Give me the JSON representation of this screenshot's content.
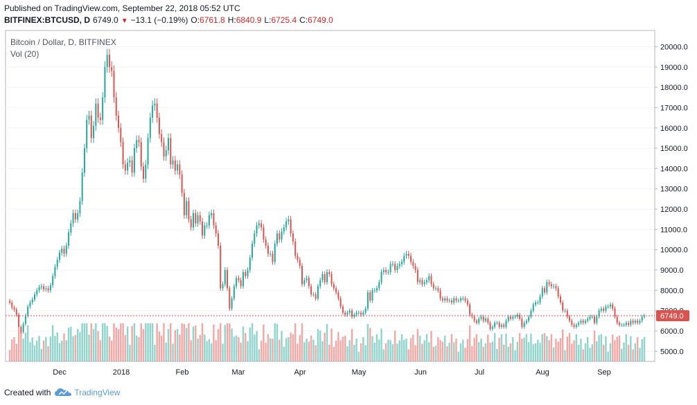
{
  "header": {
    "published": "Published on TradingView.com, September 22, 2018 05:52 UTC",
    "symbol": "BITFINEX:BTCUSD, D",
    "last": "6749.0",
    "change": "−13.1 (−0.19%)",
    "o_label": "O:",
    "o_value": "6761.8",
    "h_label": "H:",
    "h_value": "6840.9",
    "l_label": "L:",
    "l_value": "6725.4",
    "c_label": "C:",
    "c_value": "6749.0"
  },
  "chart_data": {
    "type": "candlestick",
    "title": "Bitcoin / Dollar, D, BITFINEX",
    "volume_label": "Vol (20)",
    "price_axis_ticks": [
      20000,
      19000,
      18000,
      17000,
      16000,
      15000,
      14000,
      13000,
      12000,
      11000,
      10000,
      9000,
      8000,
      7000,
      6000,
      5000
    ],
    "price_axis_labels": [
      "20000.0",
      "19000.0",
      "18000.0",
      "17000.0",
      "16000.0",
      "15000.0",
      "14000.0",
      "13000.0",
      "12000.0",
      "11000.0",
      "10000.0",
      "9000.0",
      "8000.0",
      "7000.0",
      "6000.0",
      "5000.0"
    ],
    "time_axis_labels": [
      "Dec",
      "2018",
      "Feb",
      "Mar",
      "Apr",
      "May",
      "Jun",
      "Jul",
      "Aug",
      "Sep"
    ],
    "last_price_label": "6749.0",
    "last_price": 6749.0,
    "ylim": [
      4500,
      20800
    ],
    "colors": {
      "up": "#26a69a",
      "down": "#d9534f",
      "up_vol": "#8fd3cb",
      "down_vol": "#f2a7a4",
      "last_line": "#d9534f"
    },
    "closes": [
      7400,
      7150,
      7050,
      6800,
      6200,
      5950,
      6350,
      6750,
      7200,
      7400,
      7550,
      7800,
      8000,
      8150,
      8200,
      8050,
      8100,
      8000,
      8250,
      8700,
      9150,
      9500,
      9850,
      10050,
      9800,
      10200,
      10850,
      11300,
      11800,
      11500,
      11800,
      12400,
      13800,
      15000,
      16400,
      16600,
      15500,
      16100,
      17200,
      16500,
      16400,
      17500,
      19000,
      19600,
      19000,
      18800,
      17500,
      16600,
      16000,
      15300,
      14200,
      13900,
      14300,
      14400,
      13800,
      15000,
      15400,
      15300,
      14100,
      13500,
      14200,
      15500,
      16500,
      17100,
      17200,
      16500,
      15700,
      15300,
      14600,
      14900,
      15500,
      14200,
      14400,
      13900,
      14200,
      13700,
      12800,
      11700,
      12400,
      11500,
      11100,
      11800,
      11300,
      11700,
      11400,
      10700,
      11200,
      11200,
      11700,
      11800,
      11200,
      10800,
      10200,
      8100,
      8300,
      9000,
      8100,
      7100,
      7600,
      8200,
      8600,
      8500,
      8200,
      8900,
      8700,
      9000,
      9600,
      10300,
      10800,
      11200,
      11300,
      11100,
      10500,
      10200,
      9800,
      9800,
      9400,
      10300,
      10800,
      10500,
      10900,
      11100,
      11400,
      11500,
      10800,
      10400,
      9700,
      9500,
      9200,
      8300,
      8500,
      8600,
      8200,
      7800,
      7800,
      7600,
      8200,
      8500,
      8800,
      8400,
      8900,
      8800,
      8300,
      8100,
      7900,
      7600,
      7200,
      6900,
      6800,
      6900,
      7000,
      6700,
      6800,
      6900,
      6900,
      6800,
      6900,
      7100,
      7900,
      7500,
      8000,
      8000,
      8100,
      8400,
      8900,
      9000,
      8900,
      8900,
      9300,
      9300,
      9000,
      9200,
      9300,
      9400,
      9700,
      9800,
      9700,
      9400,
      9200,
      9000,
      8400,
      8500,
      8300,
      8400,
      8500,
      8700,
      8300,
      8100,
      8100,
      8000,
      7600,
      7500,
      7600,
      7500,
      7500,
      7400,
      7600,
      7500,
      7500,
      7600,
      7600,
      7500,
      7300,
      6800,
      6700,
      6500,
      6400,
      6600,
      6700,
      6500,
      6600,
      6400,
      6100,
      6200,
      6400,
      6400,
      6200,
      6300,
      6200,
      6500,
      6700,
      6600,
      6700,
      6700,
      6800,
      6600,
      6200,
      6400,
      6500,
      6700,
      7000,
      7300,
      7400,
      7400,
      7700,
      8100,
      7900,
      8400,
      8300,
      8200,
      8200,
      8100,
      7700,
      7400,
      7000,
      7000,
      6700,
      6500,
      6300,
      6200,
      6300,
      6400,
      6500,
      6400,
      6500,
      6600,
      6700,
      6700,
      6400,
      6700,
      7000,
      7100,
      7000,
      7200,
      7200,
      7300,
      7100,
      6700,
      6400,
      6300,
      6300,
      6300,
      6400,
      6300,
      6500,
      6400,
      6500,
      6400,
      6500,
      6700,
      6749
    ],
    "volume_scale_note": "volumes are relative (no axis labels shown)"
  },
  "footer": {
    "created_with": "Created with",
    "brand": "TradingView"
  }
}
